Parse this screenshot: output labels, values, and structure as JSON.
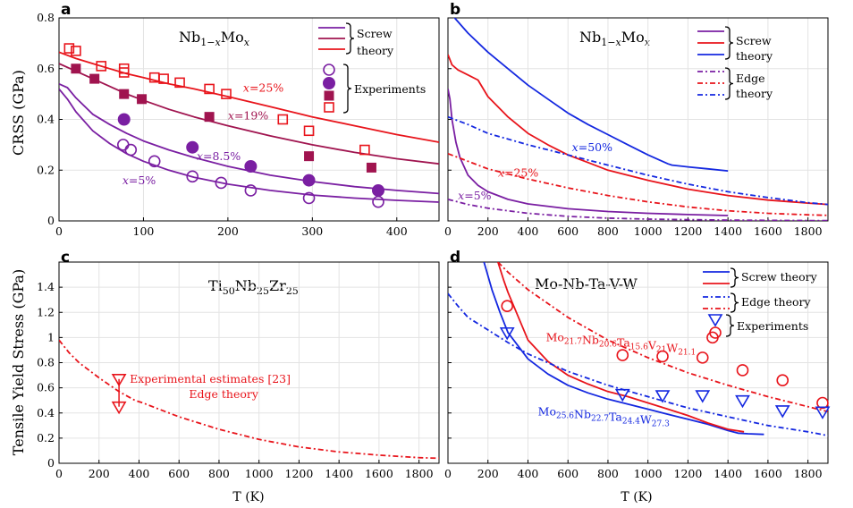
{
  "figure": {
    "ylabel_top": "CRSS (GPa)",
    "ylabel_bottom": "Tensile Yield Stress (GPa)",
    "xlabel": "T (K)"
  },
  "colors": {
    "c5": "#7a1fa2",
    "c85": "#7a1fa2",
    "c19": "#a0144f",
    "c25": "#e8141b",
    "red": "#e8141b",
    "blue": "#1428e0",
    "purple": "#7a1fa2"
  },
  "chart_data": [
    {
      "panel": "a",
      "type": "line",
      "title": "Nb1−xMox",
      "xlabel": "",
      "ylabel": "CRSS (GPa)",
      "xlim": [
        0,
        450
      ],
      "ylim": [
        0,
        0.8
      ],
      "xticks": [
        0,
        100,
        200,
        300,
        400
      ],
      "yticks": [
        0,
        0.2,
        0.4,
        0.6,
        0.8
      ],
      "grid": true,
      "legend": {
        "items": [
          "Screw theory",
          "Experiments"
        ],
        "placement": "top-right"
      },
      "series": [
        {
          "label": "x=5%",
          "kind": "theory",
          "color_key": "c5",
          "x": [
            0,
            10,
            20,
            40,
            60,
            80,
            100,
            130,
            160,
            200,
            250,
            300,
            350,
            400,
            450
          ],
          "y": [
            0.52,
            0.48,
            0.43,
            0.355,
            0.305,
            0.265,
            0.235,
            0.2,
            0.172,
            0.145,
            0.12,
            0.102,
            0.09,
            0.081,
            0.074
          ]
        },
        {
          "label": "x=8.5%",
          "kind": "theory",
          "color_key": "c85",
          "x": [
            0,
            10,
            20,
            40,
            60,
            80,
            100,
            130,
            160,
            200,
            250,
            300,
            350,
            400,
            450
          ],
          "y": [
            0.54,
            0.525,
            0.485,
            0.42,
            0.38,
            0.345,
            0.315,
            0.28,
            0.25,
            0.215,
            0.18,
            0.155,
            0.135,
            0.12,
            0.108
          ]
        },
        {
          "label": "x=19%",
          "kind": "theory",
          "color_key": "c19",
          "x": [
            0,
            20,
            40,
            60,
            80,
            100,
            130,
            160,
            200,
            250,
            300,
            350,
            400,
            450
          ],
          "y": [
            0.62,
            0.59,
            0.56,
            0.53,
            0.5,
            0.475,
            0.44,
            0.41,
            0.375,
            0.335,
            0.3,
            0.27,
            0.245,
            0.225
          ]
        },
        {
          "label": "x=25%",
          "kind": "theory",
          "color_key": "c25",
          "x": [
            0,
            20,
            40,
            60,
            80,
            100,
            130,
            160,
            200,
            250,
            300,
            350,
            400,
            450
          ],
          "y": [
            0.665,
            0.64,
            0.62,
            0.6,
            0.58,
            0.565,
            0.54,
            0.52,
            0.49,
            0.45,
            0.41,
            0.375,
            0.34,
            0.31
          ]
        },
        {
          "label": "x=5% exp",
          "kind": "exp",
          "marker": "circle-open",
          "color_key": "c5",
          "x": [
            76,
            85,
            113,
            158,
            192,
            227,
            296,
            378
          ],
          "y": [
            0.3,
            0.28,
            0.235,
            0.175,
            0.15,
            0.12,
            0.09,
            0.075
          ]
        },
        {
          "label": "x=8.5% exp",
          "kind": "exp",
          "marker": "circle-filled",
          "color_key": "c85",
          "x": [
            77,
            158,
            227,
            296,
            378
          ],
          "y": [
            0.4,
            0.29,
            0.215,
            0.16,
            0.12
          ]
        },
        {
          "label": "x=19% exp",
          "kind": "exp",
          "marker": "square-filled",
          "color_key": "c19",
          "x": [
            20,
            42,
            77,
            98,
            178,
            296,
            370
          ],
          "y": [
            0.6,
            0.56,
            0.5,
            0.48,
            0.41,
            0.255,
            0.21
          ]
        },
        {
          "label": "x=25% exp",
          "kind": "exp",
          "marker": "square-open",
          "color_key": "c25",
          "x": [
            12,
            20,
            50,
            77,
            77,
            113,
            124,
            143,
            178,
            198,
            265,
            296,
            362
          ],
          "y": [
            0.68,
            0.67,
            0.61,
            0.6,
            0.585,
            0.565,
            0.56,
            0.545,
            0.52,
            0.5,
            0.4,
            0.355,
            0.28
          ]
        }
      ],
      "annotations": [
        {
          "text": "x=25%",
          "x": 218,
          "y": 0.51,
          "color_key": "c25"
        },
        {
          "text": "x=19%",
          "x": 200,
          "y": 0.4,
          "color_key": "c19"
        },
        {
          "text": "x=8.5%",
          "x": 163,
          "y": 0.24,
          "color_key": "c85"
        },
        {
          "text": "x=5%",
          "x": 75,
          "y": 0.145,
          "color_key": "c5"
        }
      ],
      "legend_text": {
        "screw1": "Screw",
        "screw2": "theory",
        "exp": "Experiments"
      }
    },
    {
      "panel": "b",
      "type": "line",
      "title": "Nb1−xMox",
      "xlabel": "",
      "ylabel": "",
      "xlim": [
        0,
        1900
      ],
      "ylim": [
        0,
        0.8
      ],
      "xticks": [
        0,
        200,
        400,
        600,
        800,
        1000,
        1200,
        1400,
        1600,
        1800
      ],
      "yticks": [
        0,
        0.2,
        0.4,
        0.6,
        0.8
      ],
      "grid": true,
      "legend": {
        "items": [
          "Screw theory",
          "Edge theory"
        ],
        "placement": "top-right"
      },
      "series": [
        {
          "label": "x=50% screw",
          "kind": "screw",
          "color_key": "blue",
          "x": [
            0,
            100,
            200,
            300,
            400,
            500,
            600,
            700,
            800,
            900,
            1000,
            1100,
            1120,
            1200,
            1300,
            1400
          ],
          "y": [
            0.83,
            0.74,
            0.665,
            0.6,
            0.535,
            0.48,
            0.425,
            0.38,
            0.34,
            0.3,
            0.26,
            0.225,
            0.22,
            0.213,
            0.205,
            0.197
          ]
        },
        {
          "label": "x=25% screw",
          "kind": "screw",
          "color_key": "red",
          "x": [
            0,
            20,
            50,
            100,
            150,
            200,
            300,
            400,
            500,
            600,
            700,
            800,
            1000,
            1200,
            1400,
            1600,
            1800,
            1900
          ],
          "y": [
            0.655,
            0.615,
            0.595,
            0.575,
            0.555,
            0.49,
            0.41,
            0.345,
            0.3,
            0.26,
            0.23,
            0.2,
            0.16,
            0.125,
            0.1,
            0.082,
            0.07,
            0.065
          ]
        },
        {
          "label": "x=5% screw",
          "kind": "screw",
          "color_key": "purple",
          "x": [
            0,
            10,
            20,
            40,
            60,
            100,
            150,
            200,
            300,
            400,
            600,
            800,
            1000,
            1200,
            1400
          ],
          "y": [
            0.52,
            0.48,
            0.4,
            0.31,
            0.25,
            0.18,
            0.14,
            0.115,
            0.085,
            0.067,
            0.048,
            0.037,
            0.03,
            0.025,
            0.021
          ]
        },
        {
          "label": "x=50% edge",
          "kind": "edge",
          "color_key": "blue",
          "x": [
            0,
            100,
            200,
            400,
            600,
            800,
            1000,
            1200,
            1400,
            1600,
            1800,
            1900
          ],
          "y": [
            0.41,
            0.38,
            0.345,
            0.3,
            0.26,
            0.22,
            0.18,
            0.145,
            0.115,
            0.092,
            0.072,
            0.065
          ]
        },
        {
          "label": "x=25% edge",
          "kind": "edge",
          "color_key": "red",
          "x": [
            0,
            100,
            200,
            400,
            600,
            800,
            1000,
            1200,
            1400,
            1600,
            1800,
            1900
          ],
          "y": [
            0.265,
            0.235,
            0.205,
            0.165,
            0.13,
            0.1,
            0.075,
            0.055,
            0.04,
            0.03,
            0.024,
            0.022
          ]
        },
        {
          "label": "x=5% edge",
          "kind": "edge",
          "color_key": "purple",
          "x": [
            0,
            100,
            200,
            400,
            600,
            800,
            1000,
            1200,
            1400,
            1600,
            1800,
            1900
          ],
          "y": [
            0.085,
            0.065,
            0.05,
            0.03,
            0.018,
            0.011,
            0.007,
            0.005,
            0.003,
            0.002,
            0.0015,
            0.001
          ]
        }
      ],
      "annotations": [
        {
          "text": "x=50%",
          "x": 620,
          "y": 0.275,
          "color_key": "blue"
        },
        {
          "text": "x=25%",
          "x": 250,
          "y": 0.175,
          "color_key": "red"
        },
        {
          "text": "x=5%",
          "x": 50,
          "y": 0.085,
          "color_key": "purple"
        }
      ],
      "legend_text": {
        "screw1": "Screw",
        "screw2": "theory",
        "edge1": "Edge",
        "edge2": "theory"
      }
    },
    {
      "panel": "c",
      "type": "line",
      "title": "Ti50Nb25Zr25",
      "xlabel": "T (K)",
      "ylabel": "Tensile Yield Stress (GPa)",
      "xlim": [
        0,
        1900
      ],
      "ylim": [
        0,
        1.6
      ],
      "xticks": [
        0,
        200,
        400,
        600,
        800,
        1000,
        1200,
        1400,
        1600,
        1800
      ],
      "yticks": [
        0,
        0.2,
        0.4,
        0.6,
        0.8,
        1,
        1.2,
        1.4
      ],
      "grid": true,
      "series": [
        {
          "label": "Edge theory",
          "kind": "edge",
          "color_key": "red",
          "x": [
            0,
            50,
            100,
            200,
            300,
            380,
            400,
            420,
            500,
            600,
            800,
            1000,
            1200,
            1400,
            1600,
            1800,
            1900
          ],
          "y": [
            0.98,
            0.88,
            0.8,
            0.68,
            0.57,
            0.5,
            0.49,
            0.48,
            0.43,
            0.37,
            0.27,
            0.19,
            0.13,
            0.09,
            0.065,
            0.045,
            0.04
          ]
        }
      ],
      "experiment": {
        "label": "Experimental estimates [23]",
        "x": 300,
        "y_high": 0.67,
        "y_low": 0.45,
        "color_key": "red"
      },
      "annotations": [
        {
          "text": "Edge theory",
          "x": 650,
          "y": 0.52,
          "color_key": "red"
        }
      ]
    },
    {
      "panel": "d",
      "type": "line",
      "title": "Mo-Nb-Ta-V-W",
      "xlabel": "T (K)",
      "ylabel": "",
      "xlim": [
        0,
        1900
      ],
      "ylim": [
        0,
        1.6
      ],
      "xticks": [
        0,
        200,
        400,
        600,
        800,
        1000,
        1200,
        1400,
        1600,
        1800
      ],
      "yticks": [
        0,
        0.2,
        0.4,
        0.6,
        0.8,
        1,
        1.2,
        1.4
      ],
      "grid": true,
      "legend": {
        "items": [
          "Screw theory",
          "Edge theory",
          "Experiments"
        ],
        "placement": "top-right"
      },
      "series": [
        {
          "label": "blue screw",
          "kind": "screw",
          "color_key": "blue",
          "x": [
            180,
            220,
            260,
            300,
            400,
            500,
            600,
            700,
            800,
            900,
            1000,
            1100,
            1200,
            1300,
            1400,
            1450,
            1500,
            1580
          ],
          "y": [
            1.6,
            1.38,
            1.2,
            1.04,
            0.83,
            0.71,
            0.62,
            0.56,
            0.51,
            0.47,
            0.43,
            0.39,
            0.35,
            0.31,
            0.26,
            0.24,
            0.235,
            0.23
          ]
        },
        {
          "label": "red screw",
          "kind": "screw",
          "color_key": "red",
          "x": [
            250,
            280,
            300,
            400,
            500,
            600,
            700,
            800,
            900,
            1000,
            1100,
            1200,
            1300,
            1400,
            1480
          ],
          "y": [
            1.6,
            1.45,
            1.36,
            0.98,
            0.81,
            0.7,
            0.63,
            0.57,
            0.53,
            0.48,
            0.43,
            0.38,
            0.32,
            0.27,
            0.25
          ]
        },
        {
          "label": "blue edge",
          "kind": "edge",
          "color_key": "blue",
          "x": [
            0,
            50,
            100,
            200,
            300,
            400,
            600,
            800,
            1000,
            1200,
            1400,
            1600,
            1800,
            1900
          ],
          "y": [
            1.35,
            1.25,
            1.16,
            1.06,
            0.96,
            0.87,
            0.73,
            0.62,
            0.53,
            0.44,
            0.37,
            0.3,
            0.25,
            0.22
          ]
        },
        {
          "label": "red edge",
          "kind": "edge",
          "color_key": "red",
          "x": [
            250,
            300,
            400,
            600,
            800,
            1000,
            1200,
            1400,
            1600,
            1800,
            1900
          ],
          "y": [
            1.6,
            1.52,
            1.38,
            1.16,
            0.98,
            0.84,
            0.72,
            0.62,
            0.53,
            0.45,
            0.41
          ]
        },
        {
          "label": "red exp",
          "kind": "exp",
          "marker": "circle-open",
          "color_key": "red",
          "x": [
            296,
            873,
            1073,
            1273,
            1323,
            1473,
            1673,
            1873
          ],
          "y": [
            1.25,
            0.86,
            0.85,
            0.84,
            1.0,
            0.74,
            0.66,
            0.48
          ]
        },
        {
          "label": "blue exp",
          "kind": "exp",
          "marker": "triangle-down",
          "color_key": "blue",
          "x": [
            296,
            873,
            1073,
            1273,
            1473,
            1673,
            1873
          ],
          "y": [
            1.04,
            0.55,
            0.54,
            0.54,
            0.5,
            0.42,
            0.41
          ]
        }
      ],
      "annotations": [
        {
          "text": "Mo21.7Nb20.6Ta15.6V21W21.1",
          "x": 490,
          "y": 0.97,
          "color_key": "red"
        },
        {
          "text": "Mo25.6Nb22.7Ta24.4W27.3",
          "x": 450,
          "y": 0.38,
          "color_key": "blue"
        }
      ],
      "legend_text": {
        "screw": "Screw theory",
        "edge": "Edge theory",
        "exp": "Experiments"
      }
    }
  ],
  "panel_labels": {
    "a": "a",
    "b": "b",
    "c": "c",
    "d": "d"
  }
}
